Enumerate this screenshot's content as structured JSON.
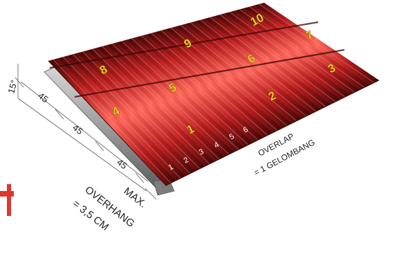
{
  "sheets": {
    "front_row": [
      "4",
      "1",
      "2",
      "3"
    ],
    "middle_row": [
      "8",
      "5",
      "6",
      "7"
    ],
    "back_row": [
      "9",
      "10"
    ]
  },
  "wave_count": [
    "1",
    "2",
    "3",
    "4",
    "5",
    "6"
  ],
  "dimensions": {
    "angle": "15°",
    "purlin_spacing": [
      "45",
      "45",
      "45"
    ]
  },
  "overlap_note": {
    "line1": "OVERLAP",
    "line2": "= 1 GELOMBANG"
  },
  "overhang_note": {
    "line1": "MAX.",
    "line2": "OVERHANG",
    "line3": "= 3,5 CM"
  },
  "colors": {
    "roof_red": "#e0352f",
    "roof_dark": "#5a0c0c",
    "sheet_number": "#f4e11c",
    "purlin": "#9a9a9a",
    "dimension_line": "#444444"
  }
}
